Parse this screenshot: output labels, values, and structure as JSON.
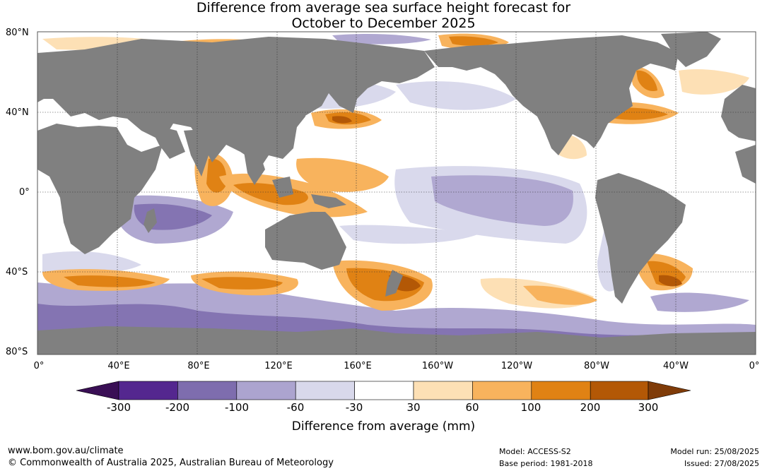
{
  "title": {
    "line1": "Difference from average sea surface height forecast for",
    "line2": "October to December 2025"
  },
  "map": {
    "lat_labels": [
      "80°N",
      "40°N",
      "0°",
      "40°S",
      "80°S"
    ],
    "lon_labels": [
      "0°",
      "40°E",
      "80°E",
      "120°E",
      "160°E",
      "160°W",
      "120°W",
      "80°W",
      "40°W",
      "0°"
    ],
    "land_color": "#808080",
    "ocean_color": "#ffffff"
  },
  "colorbar": {
    "ticks": [
      "-300",
      "-200",
      "-100",
      "-60",
      "-30",
      "30",
      "60",
      "100",
      "200",
      "300"
    ],
    "colors": [
      "#3a0f55",
      "#54278f",
      "#7e6dae",
      "#aca4cf",
      "#d8d8eb",
      "#ffffff",
      "#fde0b5",
      "#f8b35d",
      "#e08214",
      "#b35806",
      "#7f3b08"
    ],
    "label": "Difference from average (mm)"
  },
  "footer": {
    "url": "www.bom.gov.au/climate",
    "copyright": "© Commonwealth of Australia 2025, Australian Bureau of Meteorology",
    "model": "Model: ACCESS-S2",
    "base_period": "Base period: 1981-2018",
    "model_run": "Model run: 25/08/2025",
    "issued": "Issued: 27/08/2025"
  }
}
